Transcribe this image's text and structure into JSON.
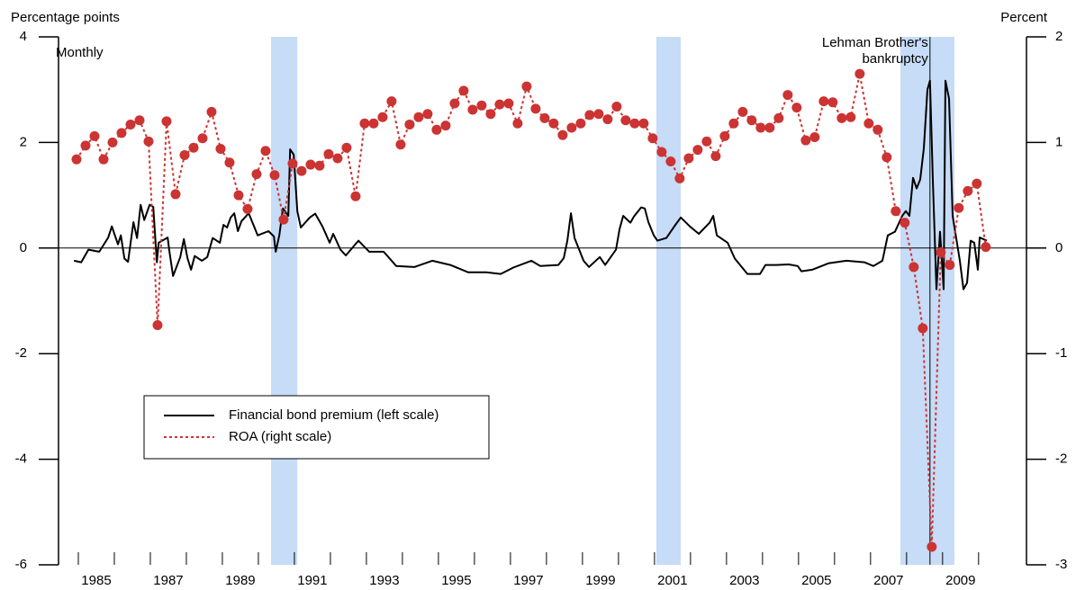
{
  "chart_data": {
    "type": "line",
    "y_label": "Percentage points",
    "y2_label": "Percent",
    "subtitle": "Monthly",
    "xlim": [
      1984.45,
      2011.33
    ],
    "xticks": [
      {
        "value": 1985.5,
        "label": "1985"
      },
      {
        "value": 1987.5,
        "label": "1987"
      },
      {
        "value": 1989.5,
        "label": "1989"
      },
      {
        "value": 1991.5,
        "label": "1991"
      },
      {
        "value": 1993.5,
        "label": "1993"
      },
      {
        "value": 1995.5,
        "label": "1995"
      },
      {
        "value": 1997.5,
        "label": "1997"
      },
      {
        "value": 1999.5,
        "label": "1999"
      },
      {
        "value": 2001.5,
        "label": "2001"
      },
      {
        "value": 2003.5,
        "label": "2003"
      },
      {
        "value": 2005.5,
        "label": "2005"
      },
      {
        "value": 2007.5,
        "label": "2007"
      },
      {
        "value": 2009.5,
        "label": "2009"
      }
    ],
    "ylim": [
      -6,
      4
    ],
    "yticks": [
      -6,
      -4,
      -2,
      0,
      2,
      4
    ],
    "y2lim": [
      -3,
      2
    ],
    "y2ticks": [
      -3,
      -2,
      -1,
      0,
      1,
      2
    ],
    "shaded_regions": [
      [
        1990.35,
        1991.08
      ],
      [
        2001.05,
        2001.73
      ],
      [
        2007.83,
        2009.33
      ]
    ],
    "shade_color": "#c6dcf7",
    "annotation": {
      "text": [
        "Lehman Brother's",
        "bankruptcy"
      ],
      "x": 2008.65
    },
    "legend": "lower left",
    "series": [
      {
        "name": "Financial bond premium (left scale)",
        "color": "#000000",
        "style": "solid",
        "x": [
          1984.88,
          1985.08,
          1985.28,
          1985.58,
          1985.83,
          1985.93,
          1986.1,
          1986.18,
          1986.28,
          1986.38,
          1986.53,
          1986.63,
          1986.73,
          1986.83,
          1986.98,
          1987.08,
          1987.18,
          1987.23,
          1987.48,
          1987.53,
          1987.63,
          1987.83,
          1987.93,
          1988.03,
          1988.13,
          1988.23,
          1988.43,
          1988.58,
          1988.73,
          1988.93,
          1989.03,
          1989.13,
          1989.23,
          1989.33,
          1989.43,
          1989.53,
          1989.73,
          1989.98,
          1990.28,
          1990.43,
          1990.48,
          1990.58,
          1990.68,
          1990.83,
          1990.88,
          1990.98,
          1991.08,
          1991.18,
          1991.43,
          1991.58,
          1991.78,
          1991.98,
          1992.08,
          1992.28,
          1992.43,
          1992.78,
          1993.08,
          1993.48,
          1993.83,
          1994.33,
          1994.83,
          1995.33,
          1995.83,
          1996.33,
          1996.73,
          1997.08,
          1997.58,
          1997.83,
          1998.33,
          1998.48,
          1998.58,
          1998.68,
          1998.78,
          1999.03,
          1999.18,
          1999.48,
          1999.63,
          1999.93,
          2000.03,
          2000.13,
          2000.33,
          2000.43,
          2000.63,
          2000.73,
          2000.83,
          2000.98,
          2001.08,
          2001.33,
          2001.58,
          2001.73,
          2001.98,
          2002.23,
          2002.53,
          2002.63,
          2002.73,
          2003.03,
          2003.23,
          2003.58,
          2003.93,
          2004.08,
          2004.38,
          2004.73,
          2004.98,
          2005.08,
          2005.38,
          2005.83,
          2006.33,
          2006.83,
          2007.08,
          2007.33,
          2007.48,
          2007.68,
          2007.88,
          2007.98,
          2008.08,
          2008.18,
          2008.28,
          2008.38,
          2008.48,
          2008.58,
          2008.65,
          2008.73,
          2008.83,
          2008.93,
          2009.03,
          2009.08,
          2009.18,
          2009.28,
          2009.48,
          2009.58,
          2009.68,
          2009.78,
          2009.88,
          2009.98,
          2010.03,
          2010.23
        ],
        "values": [
          -0.24,
          -0.27,
          -0.03,
          -0.07,
          0.2,
          0.41,
          0.07,
          0.24,
          -0.2,
          -0.26,
          0.49,
          0.19,
          0.82,
          0.53,
          0.82,
          0.78,
          -0.27,
          0.1,
          0.2,
          -0.07,
          -0.53,
          -0.17,
          0.17,
          -0.19,
          -0.41,
          -0.15,
          -0.24,
          -0.17,
          0.19,
          0.1,
          0.44,
          0.39,
          0.58,
          0.66,
          0.32,
          0.51,
          0.66,
          0.24,
          0.32,
          0.22,
          -0.07,
          0.24,
          0.75,
          0.61,
          1.87,
          1.77,
          0.7,
          0.39,
          0.58,
          0.65,
          0.41,
          0.1,
          0.27,
          -0.03,
          -0.14,
          0.14,
          -0.07,
          -0.07,
          -0.34,
          -0.36,
          -0.24,
          -0.32,
          -0.46,
          -0.46,
          -0.49,
          -0.37,
          -0.24,
          -0.34,
          -0.32,
          -0.19,
          0.14,
          0.66,
          0.19,
          -0.24,
          -0.36,
          -0.17,
          -0.32,
          -0.03,
          0.36,
          0.61,
          0.48,
          0.6,
          0.77,
          0.75,
          0.49,
          0.24,
          0.14,
          0.19,
          0.44,
          0.58,
          0.41,
          0.27,
          0.48,
          0.61,
          0.24,
          0.1,
          -0.2,
          -0.49,
          -0.49,
          -0.32,
          -0.32,
          -0.31,
          -0.34,
          -0.44,
          -0.41,
          -0.29,
          -0.24,
          -0.27,
          -0.34,
          -0.24,
          0.24,
          0.31,
          0.61,
          0.7,
          0.61,
          1.33,
          1.13,
          1.3,
          1.89,
          3.0,
          3.17,
          1.29,
          -0.78,
          0.31,
          -0.78,
          3.17,
          2.83,
          0.61,
          -0.24,
          -0.78,
          -0.66,
          0.14,
          0.1,
          -0.41,
          0.2,
          0.14
        ]
      },
      {
        "name": "ROA (right scale)",
        "color": "#cc3333",
        "style": "dotted",
        "axis": "y2",
        "x": [
          1984.95,
          1985.2,
          1985.45,
          1985.7,
          1985.95,
          1986.2,
          1986.45,
          1986.7,
          1986.95,
          1987.2,
          1987.45,
          1987.7,
          1987.95,
          1988.2,
          1988.45,
          1988.7,
          1988.95,
          1989.2,
          1989.45,
          1989.7,
          1989.95,
          1990.2,
          1990.45,
          1990.7,
          1990.95,
          1991.2,
          1991.45,
          1991.7,
          1991.95,
          1992.2,
          1992.45,
          1992.7,
          1992.95,
          1993.2,
          1993.45,
          1993.7,
          1993.95,
          1994.2,
          1994.45,
          1994.7,
          1994.95,
          1995.2,
          1995.45,
          1995.7,
          1995.95,
          1996.2,
          1996.45,
          1996.7,
          1996.95,
          1997.2,
          1997.45,
          1997.7,
          1997.95,
          1998.2,
          1998.45,
          1998.7,
          1998.95,
          1999.2,
          1999.45,
          1999.7,
          1999.95,
          2000.2,
          2000.45,
          2000.7,
          2000.95,
          2001.2,
          2001.45,
          2001.7,
          2001.95,
          2002.2,
          2002.45,
          2002.7,
          2002.95,
          2003.2,
          2003.45,
          2003.7,
          2003.95,
          2004.2,
          2004.45,
          2004.7,
          2004.95,
          2005.2,
          2005.45,
          2005.7,
          2005.95,
          2006.2,
          2006.45,
          2006.7,
          2006.95,
          2007.2,
          2007.45,
          2007.7,
          2007.95,
          2008.2,
          2008.45,
          2008.7,
          2008.95,
          2009.2,
          2009.45,
          2009.7,
          2009.95,
          2010.2
        ],
        "values": [
          0.84,
          0.97,
          1.06,
          0.84,
          1.0,
          1.09,
          1.17,
          1.21,
          1.01,
          -0.73,
          1.2,
          0.51,
          0.88,
          0.95,
          1.04,
          1.29,
          0.94,
          0.81,
          0.5,
          0.37,
          0.7,
          0.92,
          0.69,
          0.27,
          0.8,
          0.73,
          0.79,
          0.78,
          0.89,
          0.85,
          0.95,
          0.49,
          1.18,
          1.18,
          1.24,
          1.39,
          0.98,
          1.17,
          1.24,
          1.27,
          1.12,
          1.16,
          1.37,
          1.49,
          1.31,
          1.35,
          1.27,
          1.36,
          1.37,
          1.18,
          1.53,
          1.32,
          1.23,
          1.18,
          1.07,
          1.14,
          1.18,
          1.26,
          1.27,
          1.22,
          1.34,
          1.21,
          1.18,
          1.18,
          1.04,
          0.91,
          0.82,
          0.66,
          0.85,
          0.93,
          1.01,
          0.87,
          1.06,
          1.18,
          1.29,
          1.21,
          1.14,
          1.14,
          1.23,
          1.45,
          1.33,
          1.02,
          1.05,
          1.39,
          1.38,
          1.23,
          1.24,
          1.65,
          1.18,
          1.12,
          0.86,
          0.35,
          0.24,
          -0.18,
          -0.76,
          -2.83,
          -0.04,
          -0.16,
          0.38,
          0.54,
          0.61,
          0.01
        ]
      }
    ]
  }
}
